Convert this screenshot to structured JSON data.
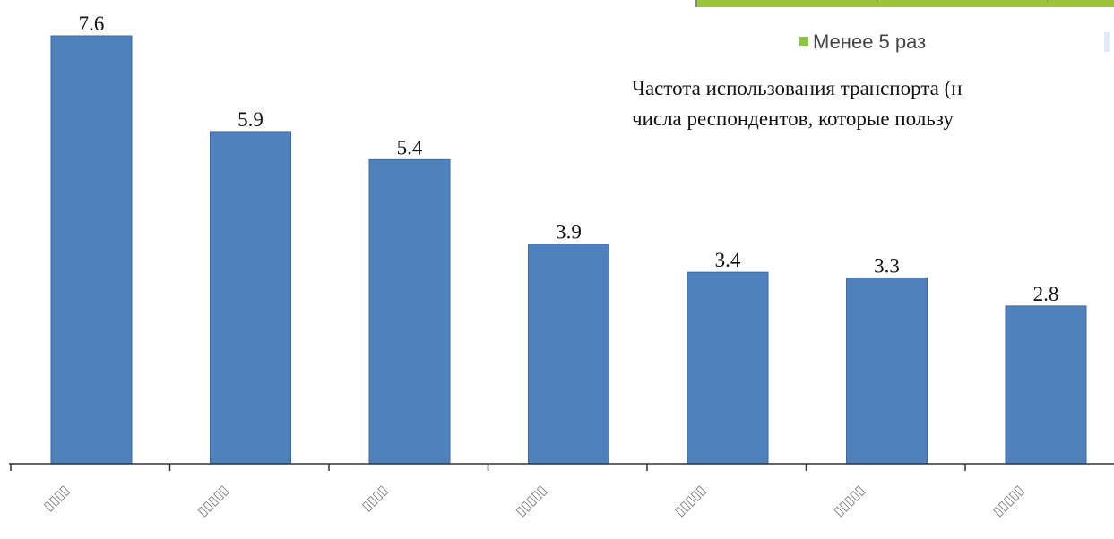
{
  "chart_data": {
    "type": "bar",
    "title": "",
    "xlabel": "",
    "ylabel": "",
    "categories": [
      "▯▯▯▯",
      "▯▯▯▯▯",
      "▯▯▯▯",
      "▯▯▯▯▯",
      "▯▯▯▯▯",
      "▯▯▯▯▯",
      "▯▯▯▯▯"
    ],
    "values": [
      7.6,
      5.9,
      5.4,
      3.9,
      3.4,
      3.3,
      2.8
    ],
    "value_labels": [
      "7.6",
      "5.9",
      "5.4",
      "3.9",
      "3.4",
      "3.3",
      "2.8"
    ],
    "ylim": [
      0,
      7.6
    ],
    "grid": false,
    "bar_color": "#4f81bd"
  },
  "overlay": {
    "legend_label": "Менее 5 раз",
    "legend_color": "#8dc63f",
    "bar_color": "#9bc53d",
    "caption_line1": "Частота использования транспорта (н",
    "caption_line2": "числа респондентов, которые пользу"
  }
}
